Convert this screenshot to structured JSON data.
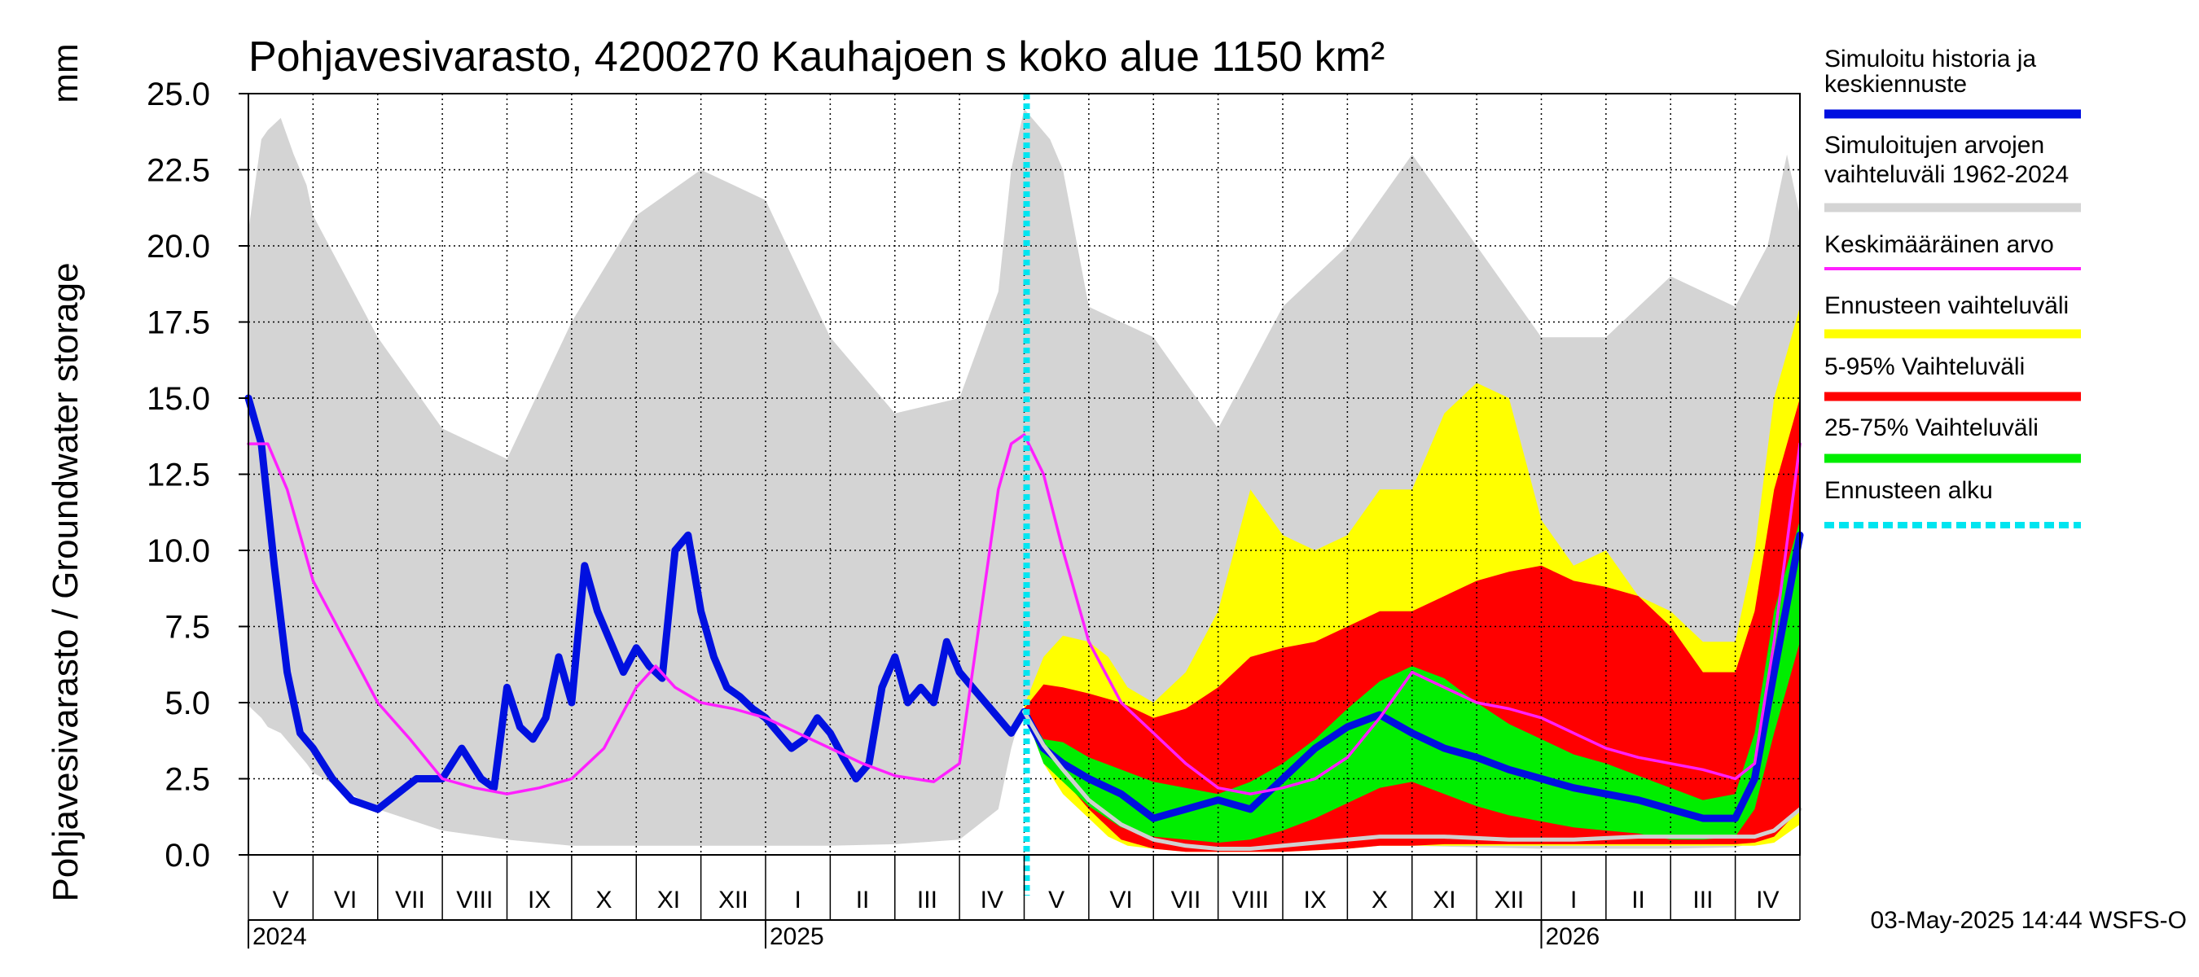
{
  "chart_data": {
    "type": "area",
    "title": "Pohjavesivarasto, 4200270 Kauhajoen s koko alue 1150 km²",
    "ylabel": "Pohjavesivarasto / Groundwater storage",
    "yunit": "mm",
    "ylim": [
      0,
      25
    ],
    "yticks": [
      "0.0",
      "2.5",
      "5.0",
      "7.5",
      "10.0",
      "12.5",
      "15.0",
      "17.5",
      "20.0",
      "22.5",
      "25.0"
    ],
    "ytick_values": [
      0,
      2.5,
      5,
      7.5,
      10,
      12.5,
      15,
      17.5,
      20,
      22.5,
      25
    ],
    "grid": true,
    "months": [
      "V",
      "VI",
      "VII",
      "VIII",
      "IX",
      "X",
      "XI",
      "XII",
      "I",
      "II",
      "III",
      "IV",
      "V",
      "VI",
      "VII",
      "VIII",
      "IX",
      "X",
      "XI",
      "XII",
      "I",
      "II",
      "III",
      "IV"
    ],
    "years": [
      {
        "label": "2024",
        "month_index": 0
      },
      {
        "label": "2025",
        "month_index": 8
      },
      {
        "label": "2026",
        "month_index": 20
      }
    ],
    "forecast_start_month": 12,
    "footer": "03-May-2025 14:44 WSFS-O",
    "legend": [
      {
        "label": "Simuloitu historia ja keskiennuste",
        "color": "#0010e0"
      },
      {
        "label": "Simuloitujen arvojen vaihteluväli 1962-2024",
        "color": "#d4d4d4"
      },
      {
        "label": "Keskimääräinen arvo",
        "color": "#ff20ff"
      },
      {
        "label": "Ennusteen vaihteluväli",
        "color": "#ffff00"
      },
      {
        "label": "5-95% Vaihteluväli",
        "color": "#ff0000"
      },
      {
        "label": "25-75% Vaihteluväli",
        "color": "#00ee00"
      },
      {
        "label": "Ennusteen alku",
        "color": "#00e5f0"
      }
    ],
    "series": [
      {
        "name": "Simuloitujen arvojen vaihteluväli 1962-2024",
        "kind": "band",
        "color": "#d4d4d4",
        "x": [
          0,
          0.2,
          0.3,
          0.5,
          0.7,
          0.9,
          1,
          2,
          3,
          4,
          5,
          6,
          7,
          8,
          9,
          10,
          11,
          11.6,
          11.8,
          12,
          12.2,
          12.4,
          12.6,
          13,
          14,
          15,
          16,
          17,
          18,
          19,
          20,
          21,
          22,
          23,
          23.5,
          23.8,
          24
        ],
        "upper": [
          20.5,
          23.5,
          23.8,
          24.2,
          23,
          22,
          21,
          17,
          14,
          13,
          17.5,
          21,
          22.5,
          21.5,
          17,
          14.5,
          15,
          18.5,
          22.5,
          24.5,
          24,
          23.5,
          22.5,
          18,
          17,
          14,
          18,
          20,
          23,
          20,
          17,
          17,
          19,
          18,
          20,
          23,
          21
        ],
        "lower": [
          4.9,
          4.5,
          4.2,
          4,
          3.5,
          3,
          2.7,
          1.5,
          0.8,
          0.5,
          0.3,
          0.3,
          0.3,
          0.3,
          0.3,
          0.35,
          0.5,
          1.5,
          3.5,
          5,
          4,
          3.2,
          2.5,
          2,
          1.5,
          0.8,
          0.5,
          0.4,
          0.3,
          0.25,
          0.2,
          0.2,
          0.2,
          0.25,
          0.5,
          1,
          2
        ]
      },
      {
        "name": "Ennusteen vaihteluväli",
        "kind": "band",
        "color": "#ffff00",
        "x": [
          12,
          12.3,
          12.6,
          13,
          13.3,
          13.6,
          14,
          14.5,
          15,
          15.5,
          16,
          16.5,
          17,
          17.5,
          18,
          18.5,
          19,
          19.5,
          20,
          20.5,
          21,
          21.5,
          22,
          22.5,
          23,
          23.3,
          23.6,
          24
        ],
        "upper": [
          4.9,
          6.5,
          7.2,
          7,
          6.5,
          5.5,
          5,
          6,
          8,
          12,
          10.5,
          10,
          10.5,
          12,
          12,
          14.5,
          15.5,
          15,
          11,
          9.5,
          10,
          8.5,
          8,
          7,
          7,
          10,
          15,
          18
        ],
        "lower": [
          4.7,
          3,
          2,
          1.2,
          0.6,
          0.3,
          0.2,
          0.1,
          0.1,
          0.1,
          0.1,
          0.15,
          0.2,
          0.3,
          0.3,
          0.3,
          0.3,
          0.3,
          0.3,
          0.3,
          0.3,
          0.3,
          0.3,
          0.3,
          0.3,
          0.3,
          0.4,
          1
        ]
      },
      {
        "name": "5-95% Vaihteluväli",
        "kind": "band",
        "color": "#ff0000",
        "x": [
          12,
          12.3,
          12.6,
          13,
          13.5,
          14,
          14.5,
          15,
          15.5,
          16,
          16.5,
          17,
          17.5,
          18,
          18.5,
          19,
          19.5,
          20,
          20.5,
          21,
          21.5,
          22,
          22.5,
          23,
          23.3,
          23.6,
          24
        ],
        "upper": [
          4.8,
          5.6,
          5.5,
          5.3,
          5,
          4.5,
          4.8,
          5.5,
          6.5,
          6.8,
          7,
          7.5,
          8,
          8,
          8.5,
          9,
          9.3,
          9.5,
          9,
          8.8,
          8.5,
          7.5,
          6,
          6,
          8,
          12,
          15
        ],
        "lower": [
          4.7,
          3.5,
          2.5,
          1.5,
          0.5,
          0.2,
          0.1,
          0.1,
          0.1,
          0.1,
          0.15,
          0.2,
          0.3,
          0.3,
          0.35,
          0.35,
          0.35,
          0.35,
          0.35,
          0.35,
          0.35,
          0.35,
          0.35,
          0.35,
          0.4,
          0.6,
          1.5
        ]
      },
      {
        "name": "25-75% Vaihteluväli",
        "kind": "band",
        "color": "#00ee00",
        "x": [
          12,
          12.3,
          12.6,
          13,
          13.5,
          14,
          14.5,
          15,
          15.5,
          16,
          16.5,
          17,
          17.5,
          18,
          18.5,
          19,
          19.5,
          20,
          20.5,
          21,
          21.5,
          22,
          22.5,
          23,
          23.3,
          23.6,
          24
        ],
        "upper": [
          4.8,
          3.8,
          3.7,
          3.2,
          2.8,
          2.4,
          2.2,
          2,
          2.4,
          3,
          3.8,
          4.8,
          5.7,
          6.2,
          5.8,
          5,
          4.3,
          3.8,
          3.3,
          3,
          2.6,
          2.2,
          1.8,
          2,
          4,
          8,
          11
        ],
        "lower": [
          4.7,
          3,
          2.4,
          1.6,
          0.9,
          0.6,
          0.5,
          0.4,
          0.5,
          0.8,
          1.2,
          1.7,
          2.2,
          2.4,
          2,
          1.6,
          1.3,
          1.1,
          0.9,
          0.8,
          0.7,
          0.5,
          0.5,
          0.6,
          1.5,
          4,
          7
        ]
      },
      {
        "name": "Simuloitu historia ja keskiennuste",
        "kind": "line",
        "color": "#0010e0",
        "width": 9,
        "x": [
          0,
          0.2,
          0.4,
          0.6,
          0.8,
          1,
          1.3,
          1.6,
          2,
          2.3,
          2.6,
          3,
          3.3,
          3.6,
          3.8,
          4,
          4.2,
          4.4,
          4.6,
          4.8,
          5,
          5.2,
          5.4,
          5.6,
          5.8,
          6,
          6.2,
          6.4,
          6.6,
          6.8,
          7,
          7.2,
          7.4,
          7.6,
          7.8,
          8,
          8.2,
          8.4,
          8.6,
          8.8,
          9,
          9.2,
          9.4,
          9.6,
          9.8,
          10,
          10.2,
          10.4,
          10.6,
          10.8,
          11,
          11.2,
          11.4,
          11.6,
          11.8,
          12,
          12.3,
          12.6,
          13,
          13.5,
          14,
          14.5,
          15,
          15.5,
          16,
          16.5,
          17,
          17.5,
          18,
          18.5,
          19,
          19.5,
          20,
          20.5,
          21,
          21.5,
          22,
          22.5,
          23,
          23.3,
          23.6,
          24
        ],
        "y": [
          15,
          13.5,
          9.5,
          6,
          4,
          3.5,
          2.5,
          1.8,
          1.5,
          2,
          2.5,
          2.5,
          3.5,
          2.5,
          2.2,
          5.5,
          4.2,
          3.8,
          4.5,
          6.5,
          5,
          9.5,
          8,
          7,
          6,
          6.8,
          6.2,
          5.8,
          10,
          10.5,
          8,
          6.5,
          5.5,
          5.2,
          4.8,
          4.5,
          4,
          3.5,
          3.8,
          4.5,
          4,
          3.2,
          2.5,
          3,
          5.5,
          6.5,
          5,
          5.5,
          5,
          7,
          6,
          5.5,
          5,
          4.5,
          4,
          4.7,
          3.5,
          3,
          2.5,
          2,
          1.2,
          1.5,
          1.8,
          1.5,
          2.5,
          3.5,
          4.2,
          4.6,
          4,
          3.5,
          3.2,
          2.8,
          2.5,
          2.2,
          2,
          1.8,
          1.5,
          1.2,
          1.2,
          2.5,
          6,
          10.5
        ]
      },
      {
        "name": "Keskimääräinen arvo",
        "kind": "line",
        "color": "#ff20ff",
        "width": 3.5,
        "x": [
          0,
          0.3,
          0.6,
          1,
          1.5,
          2,
          2.5,
          3,
          3.5,
          4,
          4.5,
          5,
          5.5,
          6,
          6.3,
          6.6,
          7,
          7.5,
          8,
          8.5,
          9,
          9.5,
          10,
          10.3,
          10.6,
          11,
          11.2,
          11.4,
          11.6,
          11.8,
          12,
          12.3,
          12.6,
          13,
          13.5,
          14,
          14.5,
          15,
          15.5,
          16,
          16.5,
          17,
          17.5,
          18,
          18.5,
          19,
          19.5,
          20,
          20.5,
          21,
          21.5,
          22,
          22.5,
          23,
          23.3,
          23.6,
          24
        ],
        "y": [
          13.5,
          13.5,
          12,
          9,
          7,
          5,
          3.8,
          2.5,
          2.2,
          2,
          2.2,
          2.5,
          3.5,
          5.5,
          6.2,
          5.5,
          5,
          4.8,
          4.5,
          4,
          3.5,
          3,
          2.6,
          2.5,
          2.4,
          3,
          6,
          9,
          12,
          13.5,
          13.8,
          12.5,
          10,
          7,
          5,
          4,
          3,
          2.2,
          2,
          2.2,
          2.5,
          3.2,
          4.5,
          6,
          5.5,
          5,
          4.8,
          4.5,
          4,
          3.5,
          3.2,
          3,
          2.8,
          2.5,
          3,
          7,
          13.5
        ]
      },
      {
        "name": "Ennusteen minimi",
        "kind": "line",
        "color": "#d0d0d0",
        "width": 5,
        "x": [
          12,
          12.3,
          12.6,
          13,
          13.5,
          14,
          14.5,
          15,
          15.5,
          16,
          16.5,
          17,
          17.5,
          18,
          18.5,
          19,
          19.5,
          20,
          20.5,
          21,
          21.5,
          22,
          22.5,
          23,
          23.3,
          23.6,
          24
        ],
        "y": [
          4.7,
          3.6,
          2.8,
          1.8,
          1,
          0.5,
          0.3,
          0.2,
          0.2,
          0.3,
          0.4,
          0.5,
          0.6,
          0.6,
          0.6,
          0.55,
          0.5,
          0.5,
          0.5,
          0.55,
          0.6,
          0.6,
          0.6,
          0.6,
          0.6,
          0.8,
          1.5
        ]
      }
    ]
  }
}
